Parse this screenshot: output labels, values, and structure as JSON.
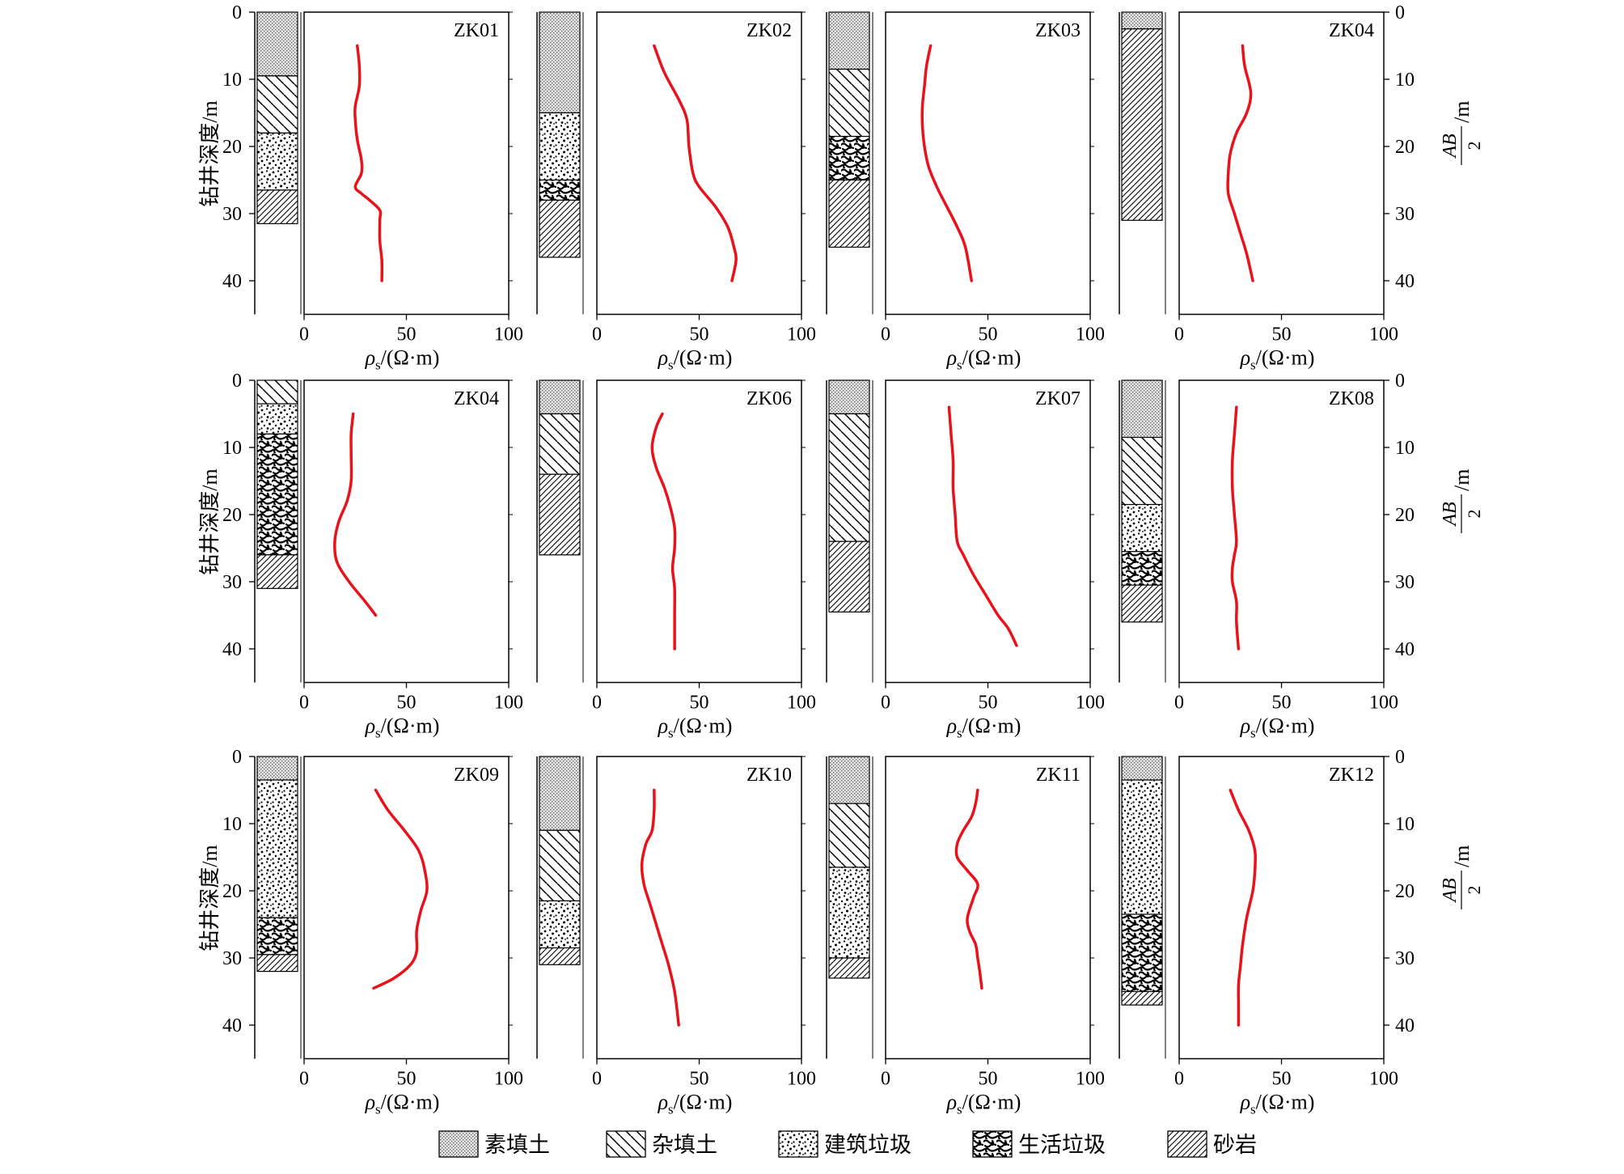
{
  "figure": {
    "y_axis_left_label": "钻井深度/m",
    "y_axis_right_label": {
      "numerator": "AB",
      "denominator": "2",
      "unit": "/m"
    },
    "x_axis_label": {
      "symbol": "ρ",
      "subscript": "s",
      "unit": "/(Ω·m)"
    },
    "colors": {
      "curve": "#e8121b",
      "axis": "#000000"
    },
    "legend_position": "bottom-center",
    "legend": [
      {
        "key": "su",
        "label": "素填土"
      },
      {
        "key": "za",
        "label": "杂填土"
      },
      {
        "key": "jz",
        "label": "建筑垃圾"
      },
      {
        "key": "sh",
        "label": "生活垃圾"
      },
      {
        "key": "sy",
        "label": "砂岩"
      }
    ]
  },
  "chart_data": [
    {
      "type": "line",
      "title": "ZK01",
      "xlabel": "ρs/(Ω·m)",
      "ylabel": "钻井深度/m",
      "xlim": [
        0,
        100
      ],
      "ylim": [
        0,
        45
      ],
      "x_ticks": [
        0,
        50,
        100
      ],
      "y_ticks": [
        0,
        10,
        20,
        30,
        40
      ],
      "lithology": [
        {
          "type": "su",
          "top": 0,
          "bottom": 9.5
        },
        {
          "type": "za",
          "top": 9.5,
          "bottom": 18
        },
        {
          "type": "jz",
          "top": 18,
          "bottom": 26.5
        },
        {
          "type": "sy",
          "top": 26.5,
          "bottom": 31.5
        }
      ],
      "series": [
        {
          "x": [
            26,
            27,
            27,
            25,
            25,
            26,
            28,
            28,
            25,
            28,
            32,
            37,
            37,
            37,
            38,
            38
          ],
          "y": [
            5,
            8,
            11,
            14,
            16,
            19,
            22,
            24,
            26,
            27,
            28,
            29.5,
            31,
            34,
            37,
            40
          ]
        }
      ]
    },
    {
      "type": "line",
      "title": "ZK02",
      "xlabel": "ρs/(Ω·m)",
      "xlim": [
        0,
        100
      ],
      "ylim": [
        0,
        45
      ],
      "x_ticks": [
        0,
        50,
        100
      ],
      "y_ticks": [
        0,
        10,
        20,
        30,
        40
      ],
      "lithology": [
        {
          "type": "su",
          "top": 0,
          "bottom": 15
        },
        {
          "type": "jz",
          "top": 15,
          "bottom": 25
        },
        {
          "type": "sh",
          "top": 25,
          "bottom": 28
        },
        {
          "type": "sy",
          "top": 28,
          "bottom": 36.5
        }
      ],
      "series": [
        {
          "x": [
            28,
            33,
            40,
            44,
            45,
            47,
            50,
            58,
            64,
            67,
            68,
            66
          ],
          "y": [
            5,
            9,
            13,
            16,
            20,
            24,
            26,
            29,
            32,
            35,
            37,
            40
          ]
        }
      ]
    },
    {
      "type": "line",
      "title": "ZK03",
      "xlabel": "ρs/(Ω·m)",
      "xlim": [
        0,
        100
      ],
      "ylim": [
        0,
        45
      ],
      "x_ticks": [
        0,
        50,
        100
      ],
      "y_ticks": [
        0,
        10,
        20,
        30,
        40
      ],
      "lithology": [
        {
          "type": "su",
          "top": 0,
          "bottom": 8.5
        },
        {
          "type": "za",
          "top": 8.5,
          "bottom": 18.5
        },
        {
          "type": "sh",
          "top": 18.5,
          "bottom": 25
        },
        {
          "type": "sy",
          "top": 25,
          "bottom": 35
        }
      ],
      "series": [
        {
          "x": [
            22,
            20,
            19,
            18,
            18,
            19,
            21,
            25,
            30,
            35,
            39,
            42
          ],
          "y": [
            5,
            8,
            11,
            14,
            17,
            20,
            23,
            26,
            29,
            32,
            35,
            40
          ]
        }
      ]
    },
    {
      "type": "line",
      "title": "ZK04",
      "xlabel": "ρs/(Ω·m)",
      "xlim": [
        0,
        100
      ],
      "ylim": [
        0,
        45
      ],
      "x_ticks": [
        0,
        50,
        100
      ],
      "y_ticks": [
        0,
        10,
        20,
        30,
        40
      ],
      "lithology": [
        {
          "type": "su",
          "top": 0,
          "bottom": 2.5
        },
        {
          "type": "sy",
          "top": 2.5,
          "bottom": 31
        }
      ],
      "series": [
        {
          "x": [
            31,
            32,
            35,
            33,
            28,
            25,
            24,
            24,
            27,
            30,
            33,
            36
          ],
          "y": [
            5,
            8,
            12,
            15,
            18,
            21,
            24,
            27,
            30,
            33,
            36,
            40
          ]
        }
      ]
    },
    {
      "type": "line",
      "title": "ZK04",
      "xlabel": "ρs/(Ω·m)",
      "ylabel": "钻井深度/m",
      "xlim": [
        0,
        100
      ],
      "ylim": [
        0,
        45
      ],
      "x_ticks": [
        0,
        50,
        100
      ],
      "y_ticks": [
        0,
        10,
        20,
        30,
        40
      ],
      "lithology": [
        {
          "type": "za",
          "top": 0,
          "bottom": 3.5
        },
        {
          "type": "jz",
          "top": 3.5,
          "bottom": 8
        },
        {
          "type": "sh",
          "top": 8,
          "bottom": 26
        },
        {
          "type": "sy",
          "top": 26,
          "bottom": 31
        }
      ],
      "series": [
        {
          "x": [
            24,
            23,
            23,
            23,
            21,
            17,
            15,
            16,
            22,
            30,
            35
          ],
          "y": [
            5,
            8,
            11,
            15,
            18,
            21,
            24,
            27,
            30,
            33,
            35
          ]
        }
      ]
    },
    {
      "type": "line",
      "title": "ZK06",
      "xlabel": "ρs/(Ω·m)",
      "xlim": [
        0,
        100
      ],
      "ylim": [
        0,
        45
      ],
      "x_ticks": [
        0,
        50,
        100
      ],
      "y_ticks": [
        0,
        10,
        20,
        30,
        40
      ],
      "lithology": [
        {
          "type": "su",
          "top": 0,
          "bottom": 5
        },
        {
          "type": "za",
          "top": 5,
          "bottom": 14
        },
        {
          "type": "sy",
          "top": 14,
          "bottom": 26
        }
      ],
      "series": [
        {
          "x": [
            32,
            29,
            27,
            29,
            33,
            36,
            38,
            38,
            37,
            38,
            38,
            38
          ],
          "y": [
            5,
            7,
            10,
            13,
            16,
            19,
            22,
            25,
            28,
            31,
            35,
            40
          ]
        }
      ]
    },
    {
      "type": "line",
      "title": "ZK07",
      "xlabel": "ρs/(Ω·m)",
      "xlim": [
        0,
        100
      ],
      "ylim": [
        0,
        45
      ],
      "x_ticks": [
        0,
        50,
        100
      ],
      "y_ticks": [
        0,
        10,
        20,
        30,
        40
      ],
      "lithology": [
        {
          "type": "su",
          "top": 0,
          "bottom": 5
        },
        {
          "type": "za",
          "top": 5,
          "bottom": 24
        },
        {
          "type": "sy",
          "top": 24,
          "bottom": 34.5
        }
      ],
      "series": [
        {
          "x": [
            31,
            32,
            33,
            33,
            34,
            35,
            38,
            43,
            49,
            55,
            60,
            64
          ],
          "y": [
            4,
            8,
            12,
            16,
            20,
            24,
            26,
            29,
            32,
            35,
            37,
            39.5
          ]
        }
      ]
    },
    {
      "type": "line",
      "title": "ZK08",
      "xlabel": "ρs/(Ω·m)",
      "xlim": [
        0,
        100
      ],
      "ylim": [
        0,
        45
      ],
      "x_ticks": [
        0,
        50,
        100
      ],
      "y_ticks": [
        0,
        10,
        20,
        30,
        40
      ],
      "lithology": [
        {
          "type": "su",
          "top": 0,
          "bottom": 8.5
        },
        {
          "type": "za",
          "top": 8.5,
          "bottom": 18.5
        },
        {
          "type": "jz",
          "top": 18.5,
          "bottom": 25.5
        },
        {
          "type": "sh",
          "top": 25.5,
          "bottom": 30.5
        },
        {
          "type": "sy",
          "top": 30.5,
          "bottom": 36
        }
      ],
      "series": [
        {
          "x": [
            28,
            27,
            26,
            26,
            27,
            28,
            27,
            26,
            26,
            28,
            28,
            29
          ],
          "y": [
            4,
            8,
            12,
            16,
            20,
            24,
            26,
            28,
            30,
            33,
            36,
            40
          ]
        }
      ]
    },
    {
      "type": "line",
      "title": "ZK09",
      "xlabel": "ρs/(Ω·m)",
      "ylabel": "钻井深度/m",
      "xlim": [
        0,
        100
      ],
      "ylim": [
        0,
        45
      ],
      "x_ticks": [
        0,
        50,
        100
      ],
      "y_ticks": [
        0,
        10,
        20,
        30,
        40
      ],
      "lithology": [
        {
          "type": "su",
          "top": 0,
          "bottom": 3.5
        },
        {
          "type": "jz",
          "top": 3.5,
          "bottom": 24
        },
        {
          "type": "sh",
          "top": 24,
          "bottom": 29.5
        },
        {
          "type": "sy",
          "top": 29.5,
          "bottom": 32
        }
      ],
      "series": [
        {
          "x": [
            35,
            41,
            49,
            56,
            59,
            60,
            57,
            55,
            55,
            52,
            44,
            34
          ],
          "y": [
            5,
            8,
            11,
            14,
            17,
            20,
            23,
            26,
            29,
            31,
            33,
            34.5
          ]
        }
      ]
    },
    {
      "type": "line",
      "title": "ZK10",
      "xlabel": "ρs/(Ω·m)",
      "xlim": [
        0,
        100
      ],
      "ylim": [
        0,
        45
      ],
      "x_ticks": [
        0,
        50,
        100
      ],
      "y_ticks": [
        0,
        10,
        20,
        30,
        40
      ],
      "lithology": [
        {
          "type": "su",
          "top": 0,
          "bottom": 11
        },
        {
          "type": "za",
          "top": 11,
          "bottom": 21.5
        },
        {
          "type": "jz",
          "top": 21.5,
          "bottom": 28.5
        },
        {
          "type": "sy",
          "top": 28.5,
          "bottom": 31
        }
      ],
      "series": [
        {
          "x": [
            28,
            28,
            27,
            24,
            22,
            23,
            26,
            29,
            32,
            35,
            38,
            40
          ],
          "y": [
            5,
            8,
            11,
            13,
            16,
            19,
            22,
            25,
            28,
            31,
            35,
            40
          ]
        }
      ]
    },
    {
      "type": "line",
      "title": "ZK11",
      "xlabel": "ρs/(Ω·m)",
      "xlim": [
        0,
        100
      ],
      "ylim": [
        0,
        45
      ],
      "x_ticks": [
        0,
        50,
        100
      ],
      "y_ticks": [
        0,
        10,
        20,
        30,
        40
      ],
      "lithology": [
        {
          "type": "su",
          "top": 0,
          "bottom": 7
        },
        {
          "type": "za",
          "top": 7,
          "bottom": 16.5
        },
        {
          "type": "jz",
          "top": 16.5,
          "bottom": 30
        },
        {
          "type": "sy",
          "top": 30,
          "bottom": 33
        }
      ],
      "series": [
        {
          "x": [
            45,
            44,
            42,
            38,
            35,
            35,
            40,
            45,
            43,
            40,
            41,
            44,
            45,
            46,
            47
          ],
          "y": [
            5,
            7,
            9,
            11,
            13,
            15,
            17,
            19,
            21,
            24,
            26,
            28,
            30,
            32,
            34.5
          ]
        }
      ]
    },
    {
      "type": "line",
      "title": "ZK12",
      "xlabel": "ρs/(Ω·m)",
      "xlim": [
        0,
        100
      ],
      "ylim": [
        0,
        45
      ],
      "x_ticks": [
        0,
        50,
        100
      ],
      "y_ticks": [
        0,
        10,
        20,
        30,
        40
      ],
      "lithology": [
        {
          "type": "su",
          "top": 0,
          "bottom": 3.5
        },
        {
          "type": "jz",
          "top": 3.5,
          "bottom": 23.5
        },
        {
          "type": "sh",
          "top": 23.5,
          "bottom": 35
        },
        {
          "type": "sy",
          "top": 35,
          "bottom": 37
        }
      ],
      "series": [
        {
          "x": [
            25,
            29,
            34,
            37,
            37,
            36,
            33,
            31,
            30,
            29,
            29,
            29
          ],
          "y": [
            5,
            8,
            11,
            14,
            17,
            20,
            24,
            28,
            31,
            34,
            37,
            40
          ]
        }
      ]
    }
  ]
}
